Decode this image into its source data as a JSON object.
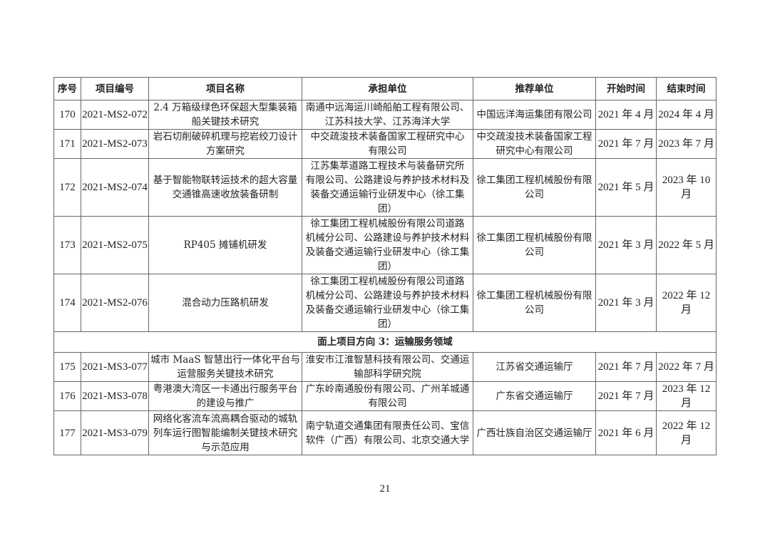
{
  "table": {
    "headers": [
      "序号",
      "项目编号",
      "项目名称",
      "承担单位",
      "推荐单位",
      "开始时间",
      "结束时间"
    ],
    "rows_a": [
      {
        "no": "170",
        "code": "2021-MS2-072",
        "name": "2.4 万箱级绿色环保超大型集装箱\n船关键技术研究",
        "undertaker": "南通中远海运川崎船舶工程有限公司、\n江苏科技大学、江苏海洋大学",
        "recommender": "中国远洋海运集团有限公司",
        "start": "2021 年 4 月",
        "end": "2024 年 4 月"
      },
      {
        "no": "171",
        "code": "2021-MS2-073",
        "name": "岩石切削破碎机理与挖岩绞刀设计\n方案研究",
        "undertaker": "中交疏浚技术装备国家工程研究中心\n有限公司",
        "recommender": "中交疏浚技术装备国家工程\n研究中心有限公司",
        "start": "2021 年 7 月",
        "end": "2023 年 7 月"
      },
      {
        "no": "172",
        "code": "2021-MS2-074",
        "name": "基于智能物联转运技术的超大容量\n交通锥高速收放装备研制",
        "undertaker": "江苏集萃道路工程技术与装备研究所\n有限公司、公路建设与养护技术材料及\n装备交通运输行业研发中心（徐工集\n团）",
        "recommender": "徐工集团工程机械股份有限\n公司",
        "start": "2021 年 5 月",
        "end": "2023 年 10 月"
      },
      {
        "no": "173",
        "code": "2021-MS2-075",
        "name": "RP405 摊铺机研发",
        "undertaker": "徐工集团工程机械股份有限公司道路\n机械分公司、公路建设与养护技术材料\n及装备交通运输行业研发中心（徐工集\n团）",
        "recommender": "徐工集团工程机械股份有限\n公司",
        "start": "2021 年 3 月",
        "end": "2022 年 5 月"
      },
      {
        "no": "174",
        "code": "2021-MS2-076",
        "name": "混合动力压路机研发",
        "undertaker": "徐工集团工程机械股份有限公司道路\n机械分公司、公路建设与养护技术材料\n及装备交通运输行业研发中心（徐工集\n团）",
        "recommender": "徐工集团工程机械股份有限\n公司",
        "start": "2021 年 3 月",
        "end": "2022 年 12 月"
      }
    ],
    "section_title": "面上项目方向 3：运输服务领域",
    "rows_b": [
      {
        "no": "175",
        "code": "2021-MS3-077",
        "name": "城市 MaaS 智慧出行一体化平台与\n运营服务关键技术研究",
        "undertaker": "淮安市江淮智慧科技有限公司、交通运\n输部科学研究院",
        "recommender": "江苏省交通运输厅",
        "start": "2021 年 7 月",
        "end": "2022 年 7 月"
      },
      {
        "no": "176",
        "code": "2021-MS3-078",
        "name": "粤港澳大湾区一卡通出行服务平台\n的建设与推广",
        "undertaker": "广东岭南通股份有限公司、广州羊城通\n有限公司",
        "recommender": "广东省交通运输厅",
        "start": "2021 年 7 月",
        "end": "2023 年 12 月"
      },
      {
        "no": "177",
        "code": "2021-MS3-079",
        "name": "网络化客流车流高耦合驱动的城轨\n列车运行图智能编制关键技术研究\n与示范应用",
        "undertaker": "南宁轨道交通集团有限责任公司、宝信\n软件（广西）有限公司、北京交通大学",
        "recommender": "广西壮族自治区交通运输厅",
        "start": "2021 年 6 月",
        "end": "2022 年 12 月"
      }
    ]
  },
  "page_number": "21"
}
